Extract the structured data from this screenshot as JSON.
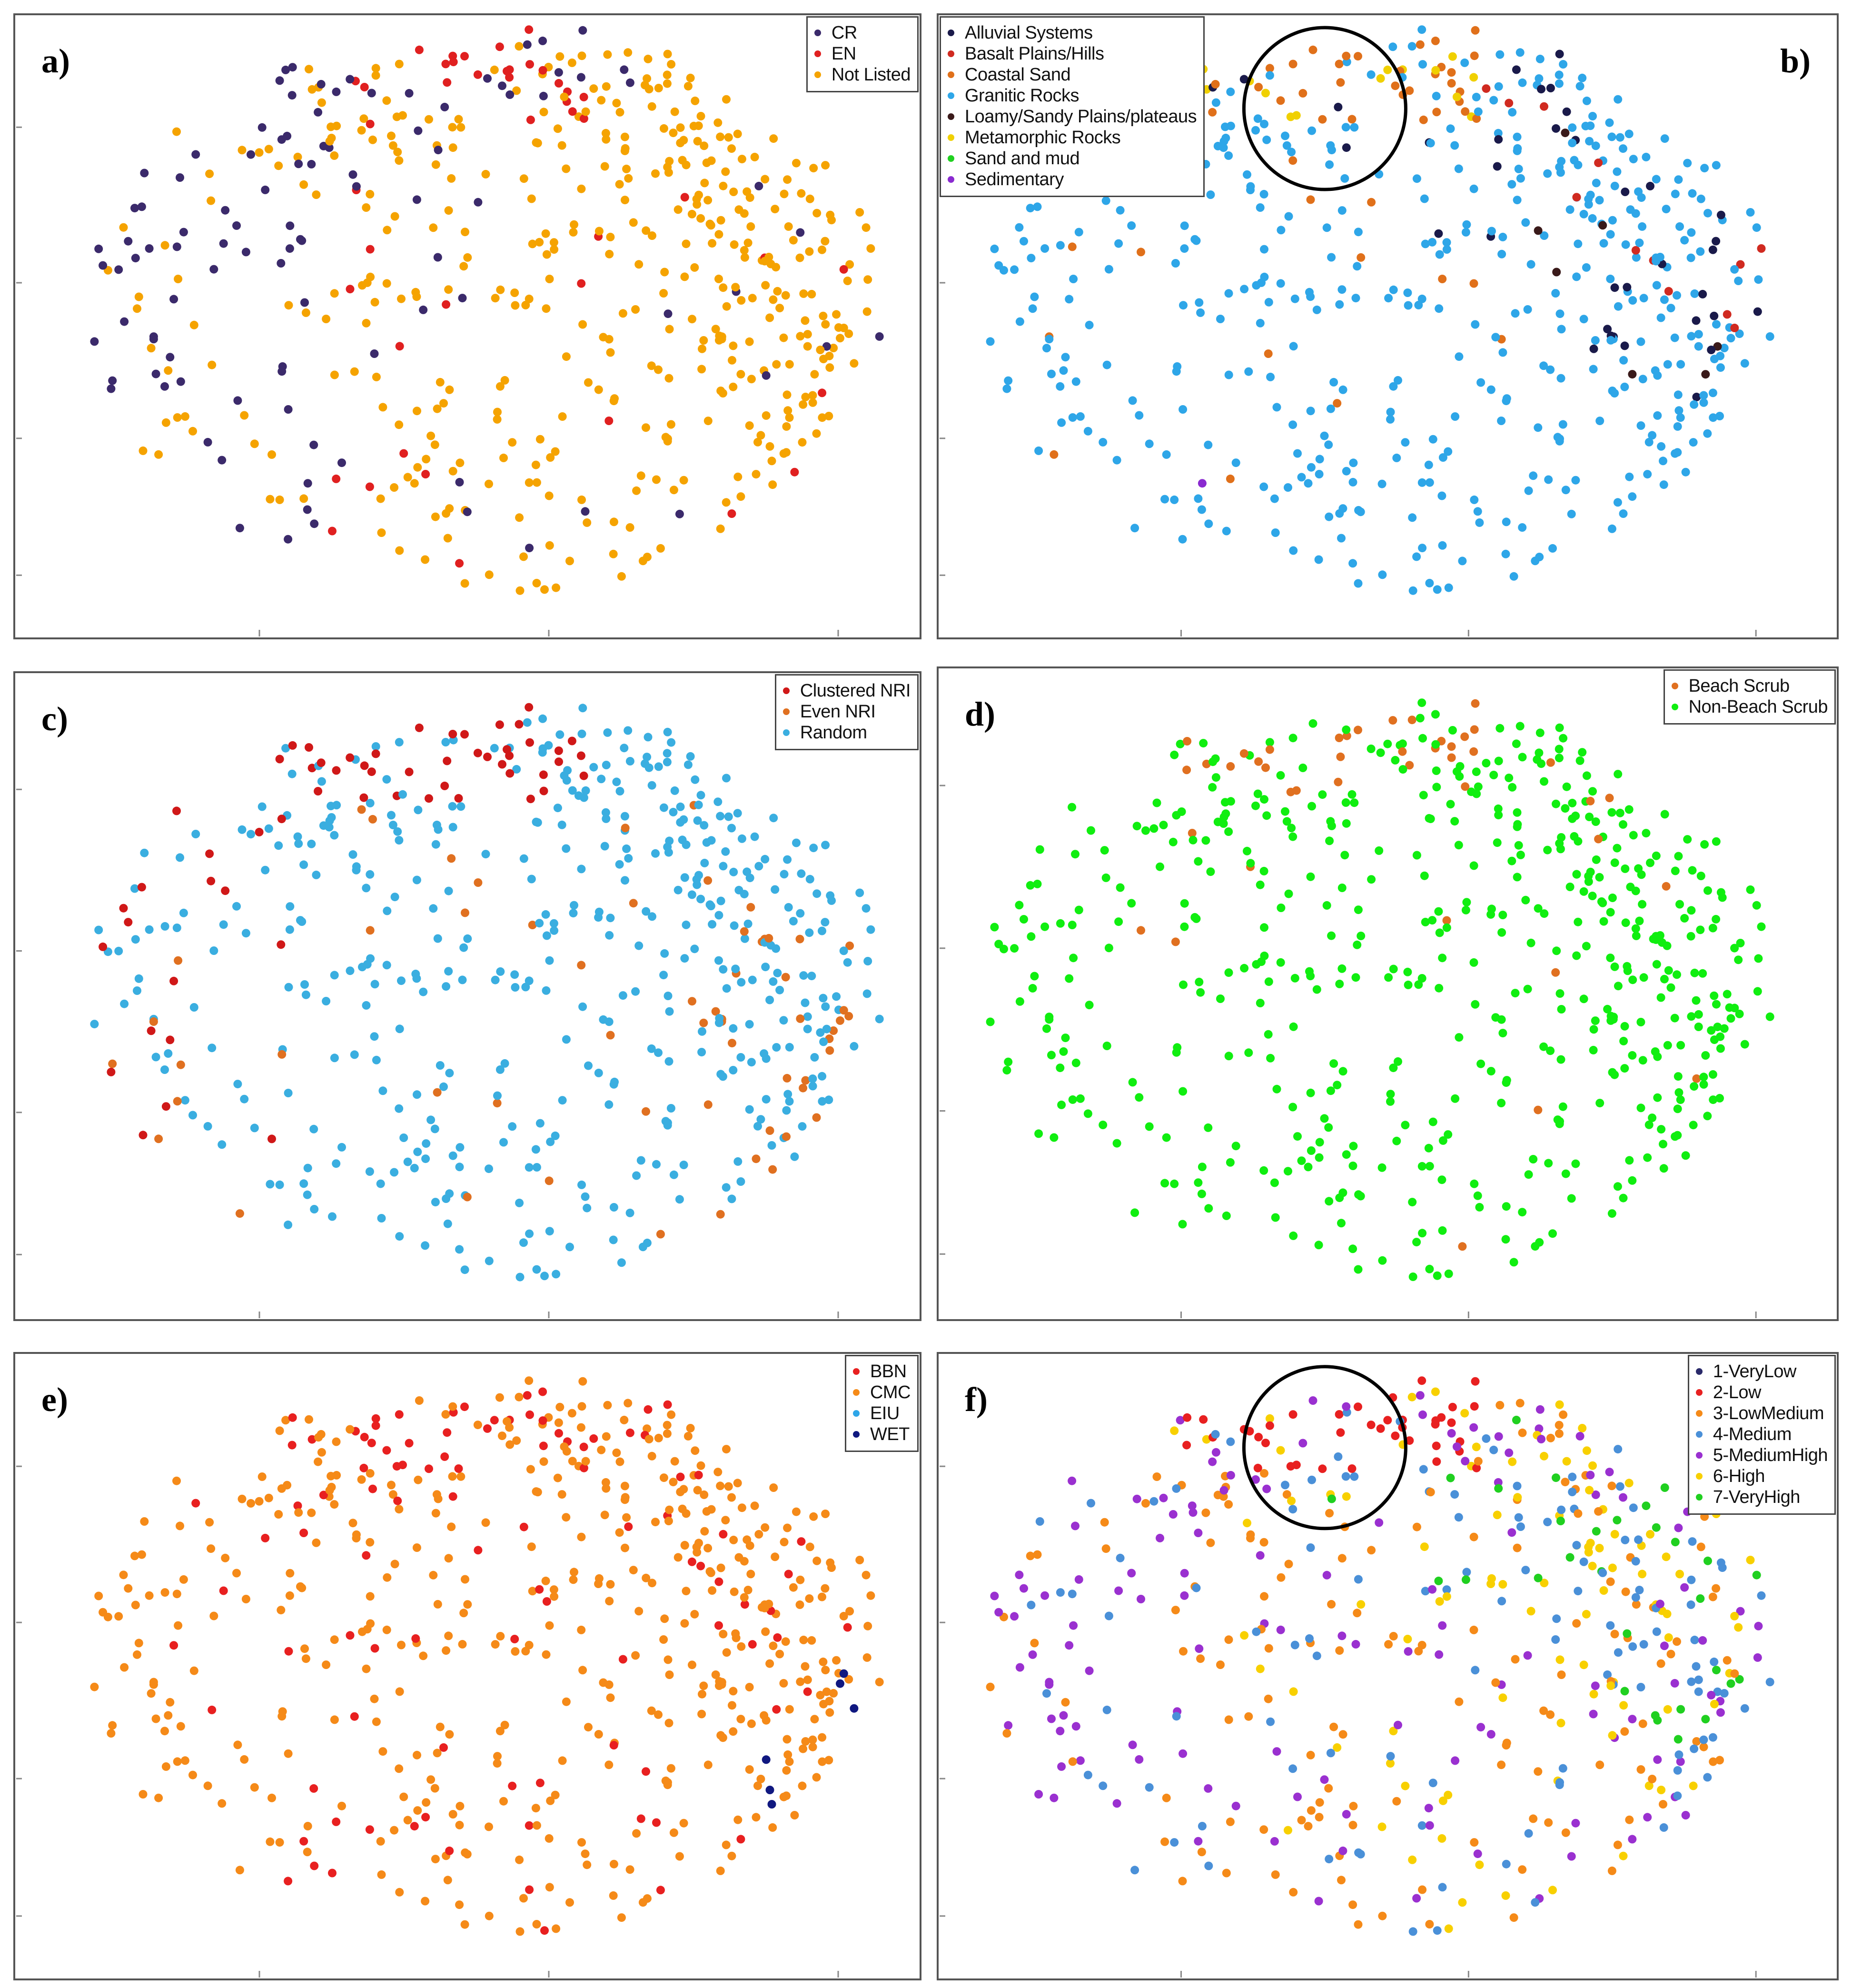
{
  "panels": [
    {
      "label": "a)",
      "legend": [
        {
          "name": "CR",
          "color": "#3b2a6b"
        },
        {
          "name": "EN",
          "color": "#e02020"
        },
        {
          "name": "Not Listed",
          "color": "#f5a300"
        }
      ]
    },
    {
      "label": "b)",
      "legend": [
        {
          "name": "Alluvial Systems",
          "color": "#1a1a4a"
        },
        {
          "name": "Basalt Plains/Hills",
          "color": "#d02a20"
        },
        {
          "name": "Coastal Sand",
          "color": "#e0701a"
        },
        {
          "name": "Granitic Rocks",
          "color": "#2ea6e8"
        },
        {
          "name": "Loamy/Sandy Plains/plateaus",
          "color": "#3a1a1a"
        },
        {
          "name": "Metamorphic Rocks",
          "color": "#f0d000"
        },
        {
          "name": "Sand and mud",
          "color": "#20d020"
        },
        {
          "name": "Sedimentary",
          "color": "#8a2ad0"
        }
      ]
    },
    {
      "label": "c)",
      "legend": [
        {
          "name": "Clustered NRI",
          "color": "#d01818"
        },
        {
          "name": "Even NRI",
          "color": "#e07020"
        },
        {
          "name": "Random",
          "color": "#3aaee0"
        }
      ]
    },
    {
      "label": "d)",
      "legend": [
        {
          "name": "Beach Scrub",
          "color": "#e07020"
        },
        {
          "name": "Non-Beach Scrub",
          "color": "#10ee10"
        }
      ]
    },
    {
      "label": "e)",
      "legend": [
        {
          "name": "BBN",
          "color": "#e82020"
        },
        {
          "name": "CMC",
          "color": "#f58a18"
        },
        {
          "name": "EIU",
          "color": "#2ea6e8"
        },
        {
          "name": "WET",
          "color": "#101880"
        }
      ]
    },
    {
      "label": "f)",
      "legend": [
        {
          "name": "1-VeryLow",
          "color": "#2a2a6a"
        },
        {
          "name": "2-Low",
          "color": "#e82020"
        },
        {
          "name": "3-LowMedium",
          "color": "#f58a18"
        },
        {
          "name": "4-Medium",
          "color": "#4a90d8"
        },
        {
          "name": "5-MediumHigh",
          "color": "#9a30d0"
        },
        {
          "name": "6-High",
          "color": "#f8d000"
        },
        {
          "name": "7-VeryHigh",
          "color": "#20d020"
        }
      ]
    }
  ],
  "chart_data": [
    {
      "type": "scatter",
      "title": "a)",
      "xlabel": "",
      "ylabel": "",
      "series": [
        {
          "name": "CR",
          "x": [
            -0.95,
            -0.7,
            -0.65,
            -0.62,
            -0.55,
            -0.52,
            -0.45,
            -0.4,
            -0.3,
            -0.2,
            -0.1,
            0.0,
            0.1,
            0.12,
            -0.35,
            -0.25,
            0.05,
            -0.05
          ],
          "y": [
            0.3,
            0.1,
            -0.1,
            -0.3,
            0.4,
            0.7,
            0.8,
            -0.6,
            -0.8,
            -0.2,
            0.2,
            0.5,
            0.6,
            0.3,
            0.0,
            0.9,
            -0.4,
            -0.7
          ]
        },
        {
          "name": "EN",
          "x": [
            -0.5,
            -0.3,
            -0.2,
            0.0,
            0.1,
            0.2,
            0.3,
            0.5,
            0.6,
            -0.1,
            0.4
          ],
          "y": [
            0.6,
            0.75,
            0.2,
            0.9,
            0.4,
            -0.1,
            0.5,
            -0.3,
            0.1,
            0.1,
            0.7
          ]
        },
        {
          "name": "Not Listed",
          "x": [
            -0.8,
            -0.6,
            -0.4,
            -0.2,
            0.0,
            0.2,
            0.4,
            0.6,
            0.8,
            0.3,
            0.5,
            0.7,
            0.1,
            -0.1,
            0.45,
            0.65,
            0.25
          ],
          "y": [
            0.2,
            -0.3,
            0.5,
            -0.5,
            0.3,
            0.7,
            0.6,
            0.5,
            0.0,
            -0.4,
            0.2,
            -0.2,
            -0.6,
            -0.8,
            0.8,
            0.35,
            0.1
          ]
        }
      ]
    },
    {
      "type": "scatter",
      "title": "b)",
      "xlabel": "",
      "ylabel": "",
      "series": [
        {
          "name": "Granitic Rocks",
          "x": [
            -0.8,
            -0.5,
            -0.2,
            0.0,
            0.2,
            0.4,
            0.6,
            0.8,
            0.3,
            0.5
          ],
          "y": [
            0.1,
            -0.4,
            0.3,
            -0.7,
            0.5,
            0.6,
            0.2,
            -0.1,
            -0.3,
            0.7
          ]
        },
        {
          "name": "Coastal Sand",
          "x": [
            -0.3,
            -0.2,
            -0.1,
            0.0,
            0.1
          ],
          "y": [
            0.8,
            0.85,
            0.75,
            0.9,
            0.8
          ]
        },
        {
          "name": "Alluvial Systems",
          "x": [
            0.2,
            0.4,
            0.6,
            0.7
          ],
          "y": [
            0.6,
            0.1,
            0.3,
            -0.2
          ]
        }
      ]
    },
    {
      "type": "scatter",
      "title": "c)",
      "xlabel": "",
      "ylabel": "",
      "series": [
        {
          "name": "Clustered NRI",
          "x": [
            -0.6,
            -0.3,
            -0.1,
            0.0,
            0.1,
            0.2,
            0.3
          ],
          "y": [
            0.8,
            0.85,
            0.9,
            0.8,
            0.7,
            0.65,
            0.6
          ]
        },
        {
          "name": "Even NRI",
          "x": [
            -0.9,
            -0.5,
            0.4,
            0.6,
            0.7
          ],
          "y": [
            -0.2,
            -0.4,
            -0.1,
            0.2,
            -0.3
          ]
        },
        {
          "name": "Random",
          "x": [
            -0.8,
            -0.4,
            -0.2,
            0.0,
            0.2,
            0.4,
            0.6,
            0.8
          ],
          "y": [
            0.1,
            -0.5,
            0.3,
            -0.7,
            0.4,
            0.6,
            0.0,
            -0.2
          ]
        }
      ]
    },
    {
      "type": "scatter",
      "title": "d)",
      "xlabel": "",
      "ylabel": "",
      "series": [
        {
          "name": "Beach Scrub",
          "x": [
            -0.3,
            -0.2,
            -0.1,
            0.0,
            -0.5,
            0.1
          ],
          "y": [
            0.8,
            0.85,
            0.75,
            0.9,
            0.4,
            0.7
          ]
        },
        {
          "name": "Non-Beach Scrub",
          "x": [
            -0.8,
            -0.5,
            -0.2,
            0.0,
            0.2,
            0.4,
            0.6,
            0.8
          ],
          "y": [
            0.1,
            -0.4,
            0.3,
            -0.7,
            0.5,
            0.6,
            0.2,
            -0.1
          ]
        }
      ]
    },
    {
      "type": "scatter",
      "title": "e)",
      "xlabel": "",
      "ylabel": "",
      "series": [
        {
          "name": "BBN",
          "x": [
            -0.4,
            -0.2,
            0.0,
            0.2,
            0.4,
            -0.6,
            0.1
          ],
          "y": [
            0.8,
            0.7,
            0.9,
            0.3,
            -0.2,
            0.5,
            -0.5
          ]
        },
        {
          "name": "CMC",
          "x": [
            -0.8,
            -0.5,
            -0.2,
            0.0,
            0.2,
            0.4,
            0.6,
            0.8
          ],
          "y": [
            0.1,
            -0.4,
            0.3,
            -0.7,
            0.5,
            0.6,
            0.2,
            -0.1
          ]
        },
        {
          "name": "WET",
          "x": [
            0.1,
            0.3,
            0.6,
            0.65
          ],
          "y": [
            0.7,
            -0.2,
            -0.1,
            -0.3
          ]
        }
      ]
    },
    {
      "type": "scatter",
      "title": "f)",
      "xlabel": "",
      "ylabel": "",
      "series": [
        {
          "name": "2-Low",
          "x": [
            -0.3,
            -0.2,
            -0.1,
            0.0,
            0.1
          ],
          "y": [
            0.8,
            0.85,
            0.75,
            0.9,
            0.7
          ]
        },
        {
          "name": "3-LowMedium",
          "x": [
            -0.6,
            -0.3,
            0.0,
            0.3,
            0.6
          ],
          "y": [
            0.2,
            -0.3,
            0.4,
            -0.5,
            0.1
          ]
        },
        {
          "name": "4-Medium",
          "x": [
            -0.8,
            -0.4,
            0.2,
            0.5,
            0.8
          ],
          "y": [
            0.1,
            0.5,
            -0.2,
            0.3,
            -0.1
          ]
        },
        {
          "name": "5-MediumHigh",
          "x": [
            -0.9,
            -0.7,
            0.4,
            0.7
          ],
          "y": [
            -0.3,
            0.0,
            0.5,
            -0.2
          ]
        },
        {
          "name": "6-High",
          "x": [
            0.2,
            0.4,
            0.6,
            0.8
          ],
          "y": [
            0.6,
            0.4,
            0.2,
            -0.3
          ]
        },
        {
          "name": "7-VeryHigh",
          "x": [
            0.5,
            0.7,
            0.75
          ],
          "y": [
            0.5,
            0.3,
            -0.1
          ]
        }
      ]
    }
  ]
}
